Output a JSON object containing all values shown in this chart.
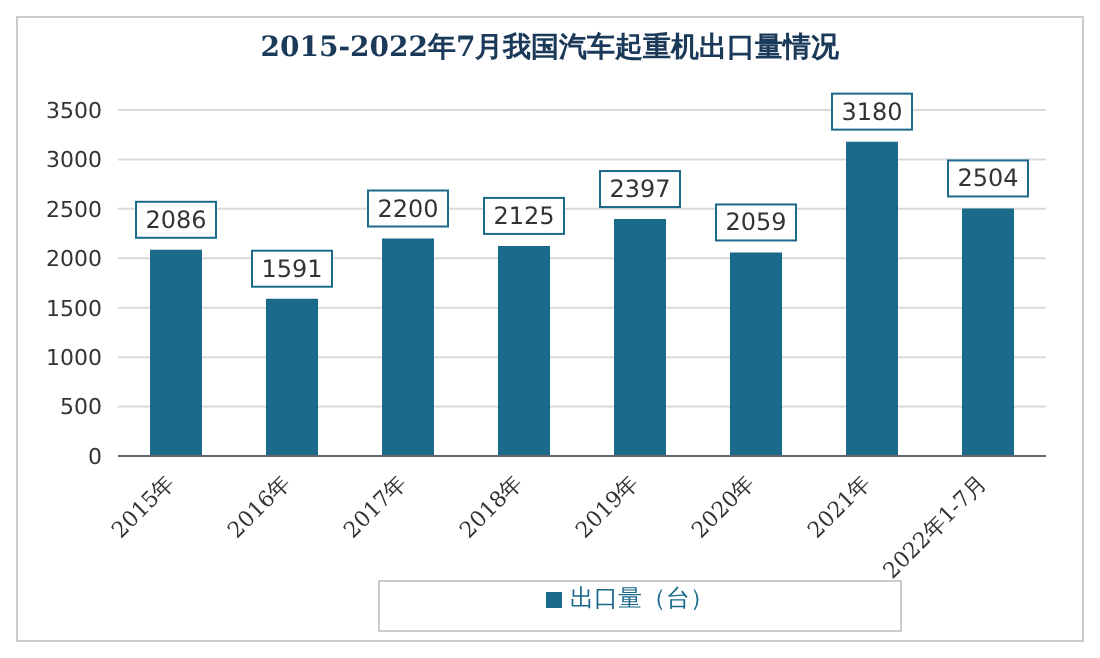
{
  "chart_data": {
    "type": "bar",
    "title": "2015-2022年7月我国汽车起重机出口量情况",
    "categories": [
      "2015年",
      "2016年",
      "2017年",
      "2018年",
      "2019年",
      "2020年",
      "2021年",
      "2022年1-7月"
    ],
    "series": [
      {
        "name": "出口量（台）",
        "color": "#1b6a8a",
        "values": [
          2086,
          1591,
          2200,
          2125,
          2397,
          2059,
          3180,
          2504
        ]
      }
    ],
    "ylim": [
      0,
      3500
    ],
    "yticks": [
      0,
      500,
      1000,
      1500,
      2000,
      2500,
      3000,
      3500
    ],
    "grid": "y",
    "legend": "bottom",
    "data_labels": true
  }
}
